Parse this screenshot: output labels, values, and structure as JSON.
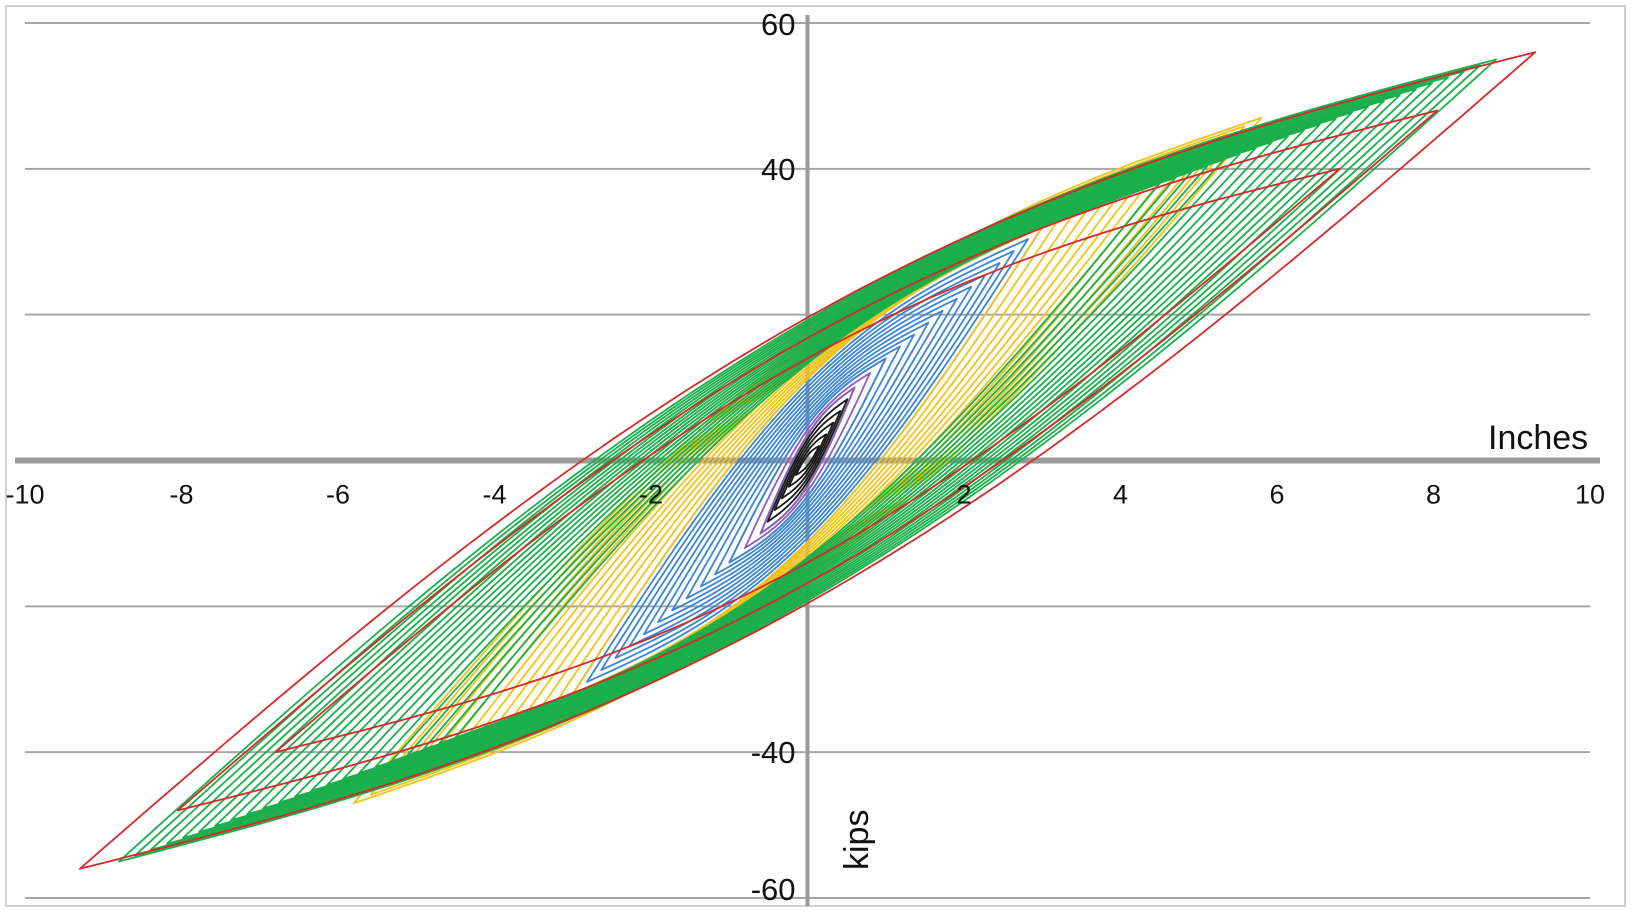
{
  "chart_data": {
    "type": "line",
    "xlabel": "Inches",
    "ylabel": "kips",
    "xlim": [
      -10,
      10
    ],
    "ylim": [
      -60,
      60
    ],
    "x_ticks": [
      "-10",
      "-8",
      "-6",
      "-4",
      "-2",
      "2",
      "4",
      "6",
      "8",
      "10"
    ],
    "y_ticks": [
      "60",
      "40",
      "-40",
      "-60"
    ],
    "grid": true,
    "legend": "none",
    "colors": {
      "black": "#1a1a1a",
      "purple": "#8e5fc1",
      "blue": "#3a86d4",
      "yellow": "#f4c31a",
      "green": "#1aaf4b",
      "red": "#d42a2a",
      "grid": "#a6a6a6"
    },
    "series": [
      {
        "color_key": "black",
        "cycles": 6,
        "dmin": 0.15,
        "dmax": 0.6,
        "fmin": 2,
        "fmax": 10
      },
      {
        "color_key": "purple",
        "cycles": 3,
        "dmin": 0.6,
        "dmax": 1.0,
        "fmin": 10,
        "fmax": 14
      },
      {
        "color_key": "blue",
        "cycles": 12,
        "dmin": 1.0,
        "dmax": 3.0,
        "fmin": 14,
        "fmax": 32
      },
      {
        "color_key": "yellow",
        "cycles": 14,
        "dmin": 3.0,
        "dmax": 5.8,
        "fmin": 32,
        "fmax": 47
      },
      {
        "color_key": "green",
        "cycles": 22,
        "dmin": 4.5,
        "dmax": 8.8,
        "fmin": 38,
        "fmax": 55
      },
      {
        "color_key": "red",
        "cycles": 3,
        "dmin": 6.8,
        "dmax": 9.3,
        "fmin": 40,
        "fmax": 56
      }
    ]
  }
}
